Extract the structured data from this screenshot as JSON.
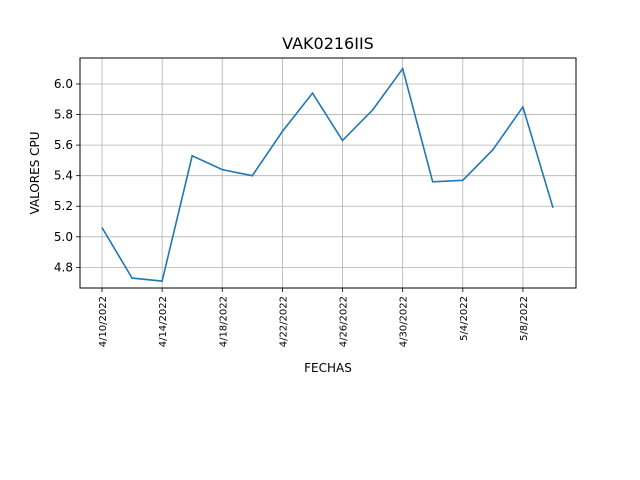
{
  "chart_data": {
    "type": "line",
    "title": "VAK0216IIS",
    "xlabel": "FECHAS",
    "ylabel": "VALORES CPU",
    "x": [
      "4/10/2022",
      "4/12/2022",
      "4/14/2022",
      "4/16/2022",
      "4/18/2022",
      "4/20/2022",
      "4/22/2022",
      "4/24/2022",
      "4/26/2022",
      "4/28/2022",
      "4/30/2022",
      "5/2/2022",
      "5/4/2022",
      "5/6/2022",
      "5/8/2022",
      "5/10/2022"
    ],
    "series": [
      {
        "values": [
          5.06,
          4.73,
          4.71,
          5.53,
          5.44,
          5.4,
          5.69,
          5.94,
          5.63,
          5.83,
          6.1,
          5.36,
          5.37,
          5.57,
          5.85,
          5.19
        ]
      }
    ],
    "x_ticks": [
      "4/10/2022",
      "4/14/2022",
      "4/18/2022",
      "4/22/2022",
      "4/26/2022",
      "4/30/2022",
      "5/4/2022",
      "5/8/2022"
    ],
    "y_ticks": [
      "4.8",
      "5.0",
      "5.2",
      "5.4",
      "5.6",
      "5.8",
      "6.0"
    ],
    "ylim": [
      4.665,
      6.17
    ],
    "grid": true,
    "line_color": "#1f77b4"
  }
}
